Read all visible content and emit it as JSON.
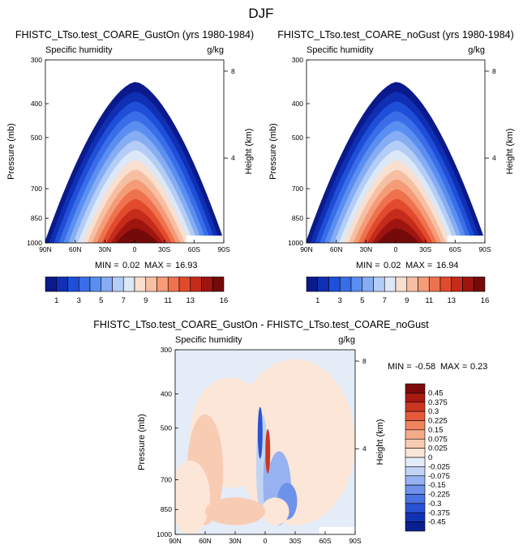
{
  "figure_title": "DJF",
  "colors": {
    "humidity_levels": [
      "#0a1a8c",
      "#0f2fb4",
      "#1f4fd8",
      "#3a6ee8",
      "#5a8ef0",
      "#86adf3",
      "#b4cdf6",
      "#dde8f7",
      "#f8dfcf",
      "#f7bfa2",
      "#f59b78",
      "#ef724f",
      "#e24a2e",
      "#c52b1a",
      "#9e1510",
      "#740a0a"
    ],
    "diff_levels": [
      "#08208f",
      "#1232b6",
      "#2a52d4",
      "#4a72e2",
      "#6e92ea",
      "#97b2f0",
      "#c2d4f5",
      "#e4ecf8",
      "#fbe6d8",
      "#f8ccb3",
      "#f5ab8a",
      "#f0845f",
      "#e45a3a",
      "#cc3620",
      "#a81a12",
      "#7d0b0b"
    ]
  },
  "chart_data": [
    {
      "type": "heatmap",
      "title": "FHISTC_LTso.test_COARE_GustOn (yrs 1980-1984)",
      "left_label": "Specific humidity",
      "right_label": "g/kg",
      "ylabel": "Pressure (mb)",
      "ylabel_right": "Height (km)",
      "x_ticks": [
        "90N",
        "60N",
        "30N",
        "0",
        "30S",
        "60S",
        "90S"
      ],
      "y_ticks": [
        "300",
        "400",
        "500",
        "700",
        "850",
        "1000"
      ],
      "y_ticks_right": [
        "8",
        "4"
      ],
      "stats": {
        "min_label": "MIN =",
        "min": "0.02",
        "max_label": "MAX =",
        "max": "16.93"
      },
      "colorbar_levels": [
        1,
        2,
        3,
        4,
        5,
        6,
        7,
        8,
        9,
        10,
        11,
        12,
        13,
        14,
        15,
        16
      ],
      "colorbar_labels": [
        "1",
        "3",
        "5",
        "7",
        "9",
        "11",
        "13",
        "16"
      ]
    },
    {
      "type": "heatmap",
      "title": "FHISTC_LTso.test_COARE_noGust (yrs 1980-1984)",
      "left_label": "Specific humidity",
      "right_label": "g/kg",
      "ylabel": "Pressure (mb)",
      "ylabel_right": "Height (km)",
      "x_ticks": [
        "90N",
        "60N",
        "30N",
        "0",
        "30S",
        "60S",
        "90S"
      ],
      "y_ticks": [
        "300",
        "400",
        "500",
        "700",
        "850",
        "1000"
      ],
      "y_ticks_right": [
        "8",
        "4"
      ],
      "stats": {
        "min_label": "MIN =",
        "min": "0.02",
        "max_label": "MAX =",
        "max": "16.94"
      },
      "colorbar_levels": [
        1,
        2,
        3,
        4,
        5,
        6,
        7,
        8,
        9,
        10,
        11,
        12,
        13,
        14,
        15,
        16
      ],
      "colorbar_labels": [
        "1",
        "3",
        "5",
        "7",
        "9",
        "11",
        "13",
        "16"
      ]
    },
    {
      "type": "heatmap",
      "title": "FHISTC_LTso.test_COARE_GustOn - FHISTC_LTso.test_COARE_noGust",
      "left_label": "Specific humidity",
      "right_label": "g/kg",
      "ylabel": "Pressure (mb)",
      "ylabel_right": "Height (km)",
      "x_ticks": [
        "90N",
        "60N",
        "30N",
        "0",
        "30S",
        "60S",
        "90S"
      ],
      "y_ticks": [
        "300",
        "400",
        "500",
        "700",
        "850",
        "1000"
      ],
      "y_ticks_right": [
        "8",
        "4"
      ],
      "stats": {
        "min_label": "MIN =",
        "min": "-0.58",
        "max_label": "MAX =",
        "max": "0.23"
      },
      "colorbar_labels": [
        "0.45",
        "0.375",
        "0.3",
        "0.225",
        "0.15",
        "0.075",
        "0.025",
        "0",
        "-0.025",
        "-0.075",
        "-0.15",
        "-0.225",
        "-0.3",
        "-0.375",
        "-0.45"
      ]
    }
  ]
}
